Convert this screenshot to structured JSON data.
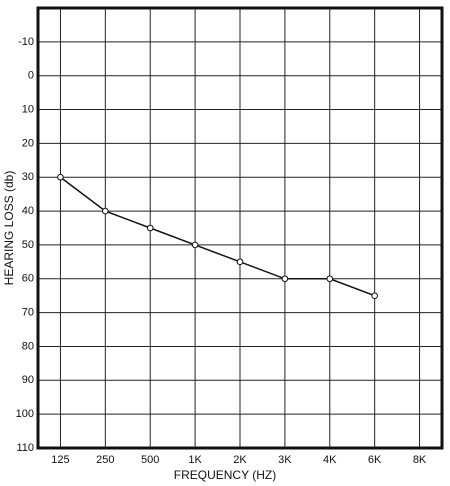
{
  "chart_data": {
    "type": "line",
    "x_label": "FREQUENCY (HZ)",
    "y_label": "HEARING LOSS (db)",
    "categories": [
      "125",
      "250",
      "500",
      "1K",
      "2K",
      "3K",
      "4K",
      "6K",
      "8K"
    ],
    "series": [
      {
        "name": "Hearing loss",
        "color": "#111111",
        "values": [
          30,
          40,
          45,
          50,
          55,
          60,
          60,
          65,
          null
        ]
      }
    ],
    "ylim": [
      -20,
      110
    ],
    "y_inverted": true,
    "yticks": [
      -10,
      0,
      10,
      20,
      30,
      40,
      50,
      60,
      70,
      80,
      90,
      100,
      110
    ],
    "grid": true
  }
}
